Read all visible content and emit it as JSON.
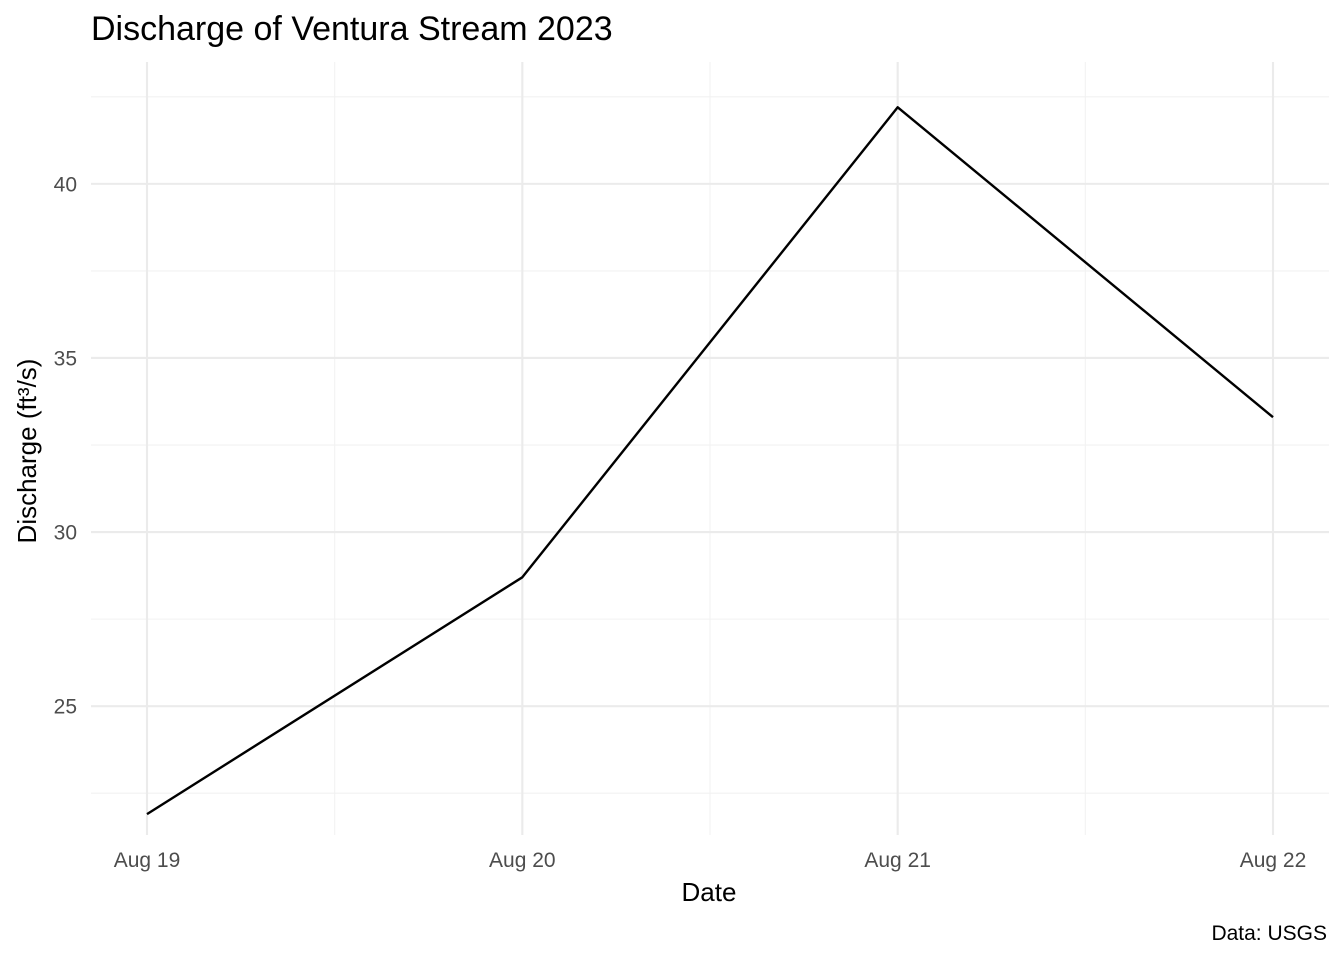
{
  "chart_data": {
    "type": "line",
    "title": "Discharge of Ventura Stream 2023",
    "xlabel": "Date",
    "ylabel": "Discharge (ft³/s)",
    "caption": "Data: USGS",
    "x": [
      "2023-08-19",
      "2023-08-20",
      "2023-08-21",
      "2023-08-22"
    ],
    "x_tick_labels": [
      "Aug 19",
      "Aug 20",
      "Aug 21",
      "Aug 22"
    ],
    "y_ticks": [
      25,
      30,
      35,
      40
    ],
    "y_tick_labels": [
      "25",
      "30",
      "35",
      "40"
    ],
    "ylim": [
      21.3,
      43.5
    ],
    "series": [
      {
        "values": [
          21.9,
          28.7,
          42.2,
          33.3
        ]
      }
    ],
    "grid": true,
    "line_color": "#000000"
  }
}
